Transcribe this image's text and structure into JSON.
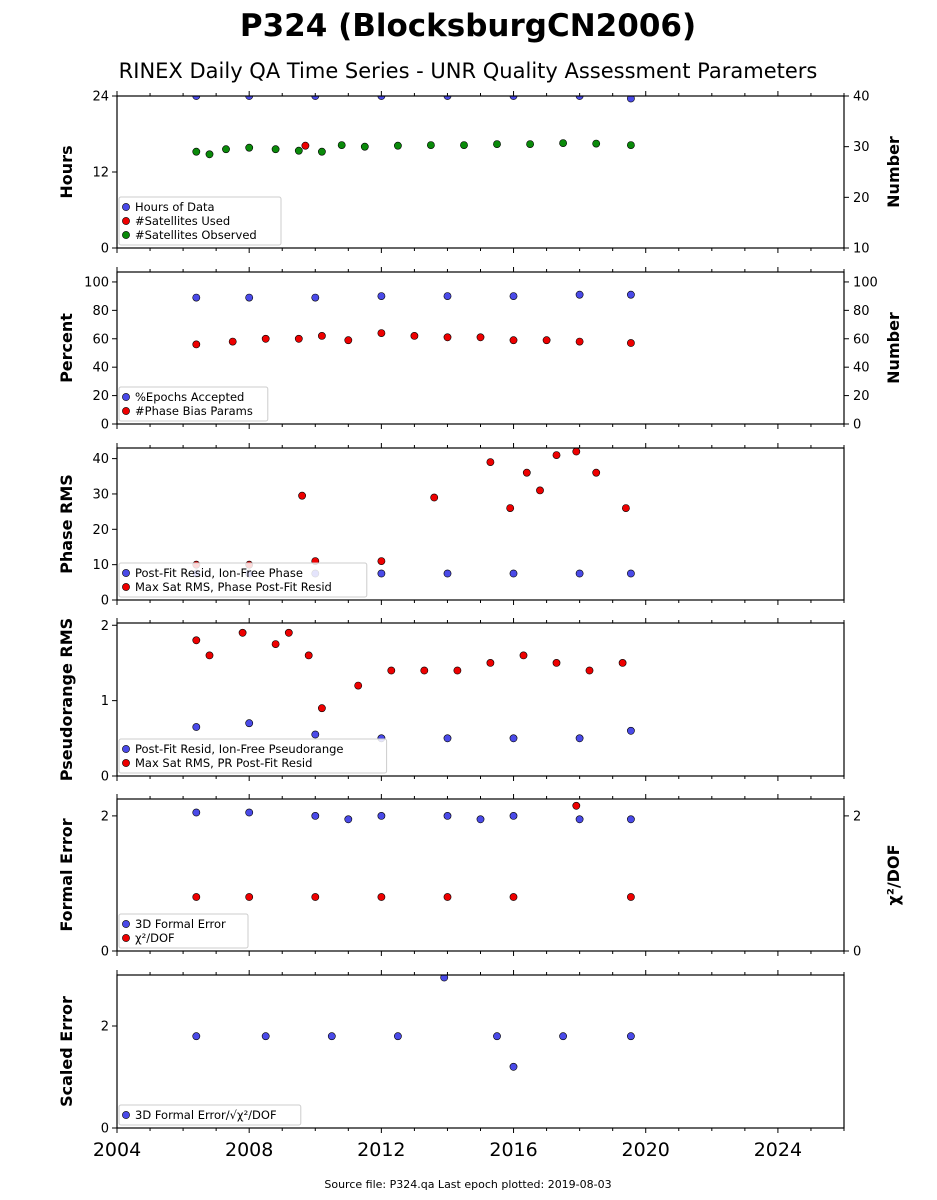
{
  "title": "P324 (BlocksburgCN2006)",
  "subtitle": "RINEX Daily QA Time Series - UNR Quality Assessment Parameters",
  "footer": "Source file: P324.qa Last epoch plotted: 2019-08-03",
  "colors": {
    "blue": "#4a4ae8",
    "red": "#ee0000",
    "green": "#0a8a0a",
    "edge": "#000000"
  },
  "chart_data": [
    {
      "type": "scatter",
      "ylabel": "Hours",
      "ylabel_right": "Number",
      "xlim": [
        2004,
        2026
      ],
      "ylim": [
        0,
        24
      ],
      "yticks": [
        0,
        12,
        24
      ],
      "ylim_right": [
        10,
        40
      ],
      "yticks_right": [
        10,
        20,
        30,
        40
      ],
      "legend": "lower-left",
      "series": [
        {
          "name": "Hours of Data",
          "color": "blue",
          "axis": "left",
          "x": [
            2006.4,
            2008.0,
            2010.0,
            2012.0,
            2014.0,
            2016.0,
            2018.0,
            2019.55
          ],
          "y": [
            24,
            24,
            24,
            24,
            24,
            24,
            24,
            23.6
          ]
        },
        {
          "name": "#Satellites Used",
          "color": "red",
          "axis": "right",
          "x": [
            2009.7
          ],
          "y": [
            30.2
          ]
        },
        {
          "name": "#Satellites Observed",
          "color": "green",
          "axis": "right",
          "x": [
            2006.4,
            2006.8,
            2007.3,
            2008.0,
            2008.8,
            2009.5,
            2010.2,
            2010.8,
            2011.5,
            2012.5,
            2013.5,
            2014.5,
            2015.5,
            2016.5,
            2017.5,
            2018.5,
            2019.55
          ],
          "y": [
            29,
            28.5,
            29.5,
            29.8,
            29.5,
            29.2,
            29.0,
            30.3,
            30.0,
            30.2,
            30.3,
            30.3,
            30.5,
            30.5,
            30.7,
            30.6,
            30.3
          ]
        }
      ]
    },
    {
      "type": "scatter",
      "ylabel": "Percent",
      "ylabel_right": "Number",
      "xlim": [
        2004,
        2026
      ],
      "ylim": [
        0,
        107
      ],
      "yticks": [
        0,
        20,
        40,
        60,
        80,
        100
      ],
      "ylim_right": [
        0,
        107
      ],
      "yticks_right": [
        0,
        20,
        40,
        60,
        80,
        100
      ],
      "legend": "lower-left",
      "series": [
        {
          "name": "%Epochs Accepted",
          "color": "blue",
          "axis": "left",
          "x": [
            2006.4,
            2008.0,
            2010.0,
            2012.0,
            2014.0,
            2016.0,
            2018.0,
            2019.55
          ],
          "y": [
            89,
            89,
            89,
            90,
            90,
            90,
            91,
            91
          ]
        },
        {
          "name": "#Phase Bias Params",
          "color": "red",
          "axis": "right",
          "x": [
            2006.4,
            2007.5,
            2008.5,
            2009.5,
            2010.2,
            2011.0,
            2012.0,
            2013.0,
            2014.0,
            2015.0,
            2016.0,
            2017.0,
            2018.0,
            2019.55
          ],
          "y": [
            56,
            58,
            60,
            60,
            62,
            59,
            64,
            62,
            61,
            61,
            59,
            59,
            58,
            57
          ]
        }
      ]
    },
    {
      "type": "scatter",
      "ylabel": "Phase RMS",
      "xlim": [
        2004,
        2026
      ],
      "ylim": [
        0,
        43
      ],
      "yticks": [
        0,
        10,
        20,
        30,
        40
      ],
      "legend": "lower-left",
      "series": [
        {
          "name": "Post-Fit Resid, Ion-Free Phase",
          "color": "blue",
          "axis": "left",
          "x": [
            2006.4,
            2008.0,
            2010.0,
            2012.0,
            2014.0,
            2016.0,
            2018.0,
            2019.55
          ],
          "y": [
            7.5,
            7.5,
            7.5,
            7.5,
            7.5,
            7.5,
            7.5,
            7.5
          ]
        },
        {
          "name": "Max Sat RMS, Phase Post-Fit Resid",
          "color": "red",
          "axis": "left",
          "x": [
            2006.4,
            2008.0,
            2009.6,
            2010.0,
            2012.0,
            2013.6,
            2015.3,
            2015.9,
            2016.4,
            2016.8,
            2017.3,
            2017.9,
            2018.5,
            2019.4
          ],
          "y": [
            10,
            10,
            29.5,
            11,
            11,
            29,
            39,
            26,
            36,
            31,
            41,
            42,
            36,
            26
          ]
        }
      ]
    },
    {
      "type": "scatter",
      "ylabel": "Pseudorange RMS",
      "xlim": [
        2004,
        2026
      ],
      "ylim": [
        0,
        2.03
      ],
      "yticks": [
        0,
        1,
        2
      ],
      "legend": "lower-left",
      "series": [
        {
          "name": "Post-Fit Resid, Ion-Free Pseudorange",
          "color": "blue",
          "axis": "left",
          "x": [
            2006.4,
            2008.0,
            2010.0,
            2012.0,
            2014.0,
            2016.0,
            2018.0,
            2019.55
          ],
          "y": [
            0.65,
            0.7,
            0.55,
            0.5,
            0.5,
            0.5,
            0.5,
            0.6
          ]
        },
        {
          "name": "Max Sat RMS, PR Post-Fit Resid",
          "color": "red",
          "axis": "left",
          "x": [
            2006.4,
            2006.8,
            2007.8,
            2008.8,
            2009.2,
            2009.8,
            2010.2,
            2011.3,
            2012.3,
            2013.3,
            2014.3,
            2015.3,
            2016.3,
            2017.3,
            2018.3,
            2019.3
          ],
          "y": [
            1.8,
            1.6,
            1.9,
            1.75,
            1.9,
            1.6,
            0.9,
            1.2,
            1.4,
            1.4,
            1.4,
            1.5,
            1.6,
            1.5,
            1.4,
            1.5
          ]
        }
      ]
    },
    {
      "type": "scatter",
      "ylabel": "Formal Error",
      "ylabel_right": "χ²/DOF",
      "xlim": [
        2004,
        2026
      ],
      "ylim": [
        0,
        2.25
      ],
      "yticks": [
        0,
        2
      ],
      "ylim_right": [
        0,
        2.25
      ],
      "yticks_right": [
        0,
        2
      ],
      "legend": "lower-left",
      "series": [
        {
          "name": "3D Formal Error",
          "color": "blue",
          "axis": "left",
          "x": [
            2006.4,
            2008.0,
            2010.0,
            2011.0,
            2012.0,
            2014.0,
            2015.0,
            2016.0,
            2018.0,
            2019.55
          ],
          "y": [
            2.05,
            2.05,
            2.0,
            1.95,
            2.0,
            2.0,
            1.95,
            2.0,
            1.95,
            1.95
          ]
        },
        {
          "name": "χ²/DOF",
          "color": "red",
          "axis": "right",
          "x": [
            2006.4,
            2008.0,
            2010.0,
            2012.0,
            2014.0,
            2016.0,
            2017.9,
            2019.55
          ],
          "y": [
            0.8,
            0.8,
            0.8,
            0.8,
            0.8,
            0.8,
            2.15,
            0.8
          ]
        }
      ]
    },
    {
      "type": "scatter",
      "ylabel": "Scaled Error",
      "xlim": [
        2004,
        2026
      ],
      "ylim": [
        0,
        3.0
      ],
      "yticks": [
        0,
        2
      ],
      "xticks": [
        2004,
        2008,
        2012,
        2016,
        2020,
        2024
      ],
      "legend": "lower-left",
      "series": [
        {
          "name": "3D Formal Error/√χ²/DOF",
          "color": "blue",
          "axis": "left",
          "x": [
            2006.4,
            2008.5,
            2010.5,
            2012.5,
            2013.9,
            2015.5,
            2016.0,
            2017.5,
            2019.55
          ],
          "y": [
            1.8,
            1.8,
            1.8,
            1.8,
            2.95,
            1.8,
            1.2,
            1.8,
            1.8
          ]
        }
      ]
    }
  ]
}
